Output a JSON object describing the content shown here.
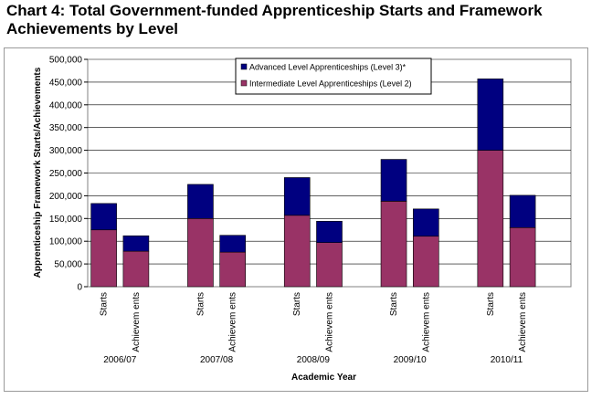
{
  "title": "Chart 4: Total Government-funded Apprenticeship Starts and Framework Achievements by Level",
  "chart_data": {
    "type": "bar",
    "stacked": true,
    "xlabel": "Academic Year",
    "ylabel": "Apprenticeship Framework Starts/Achievements",
    "ylim": [
      0,
      500000
    ],
    "yticks": [
      "0",
      "50,000",
      "100,000",
      "150,000",
      "200,000",
      "250,000",
      "300,000",
      "350,000",
      "400,000",
      "450,000",
      "500,000"
    ],
    "years": [
      "2006/07",
      "2007/08",
      "2008/09",
      "2009/10",
      "2010/11"
    ],
    "bar_labels": [
      "Starts",
      "Achievem ents"
    ],
    "grid": "horizontal",
    "legend_position": "top-center",
    "series": [
      {
        "name": "Intermediate Level Apprenticeships (Level 2)",
        "color": "#993366",
        "values": [
          125000,
          78000,
          150000,
          76000,
          157000,
          97000,
          188000,
          111000,
          300000,
          130000
        ]
      },
      {
        "name": "Advanced Level Apprenticeships (Level 3)*",
        "color": "#000080",
        "values": [
          58000,
          34000,
          75000,
          37000,
          83000,
          47000,
          92000,
          60000,
          157000,
          71000
        ]
      }
    ],
    "legend_order": [
      1,
      0
    ]
  }
}
